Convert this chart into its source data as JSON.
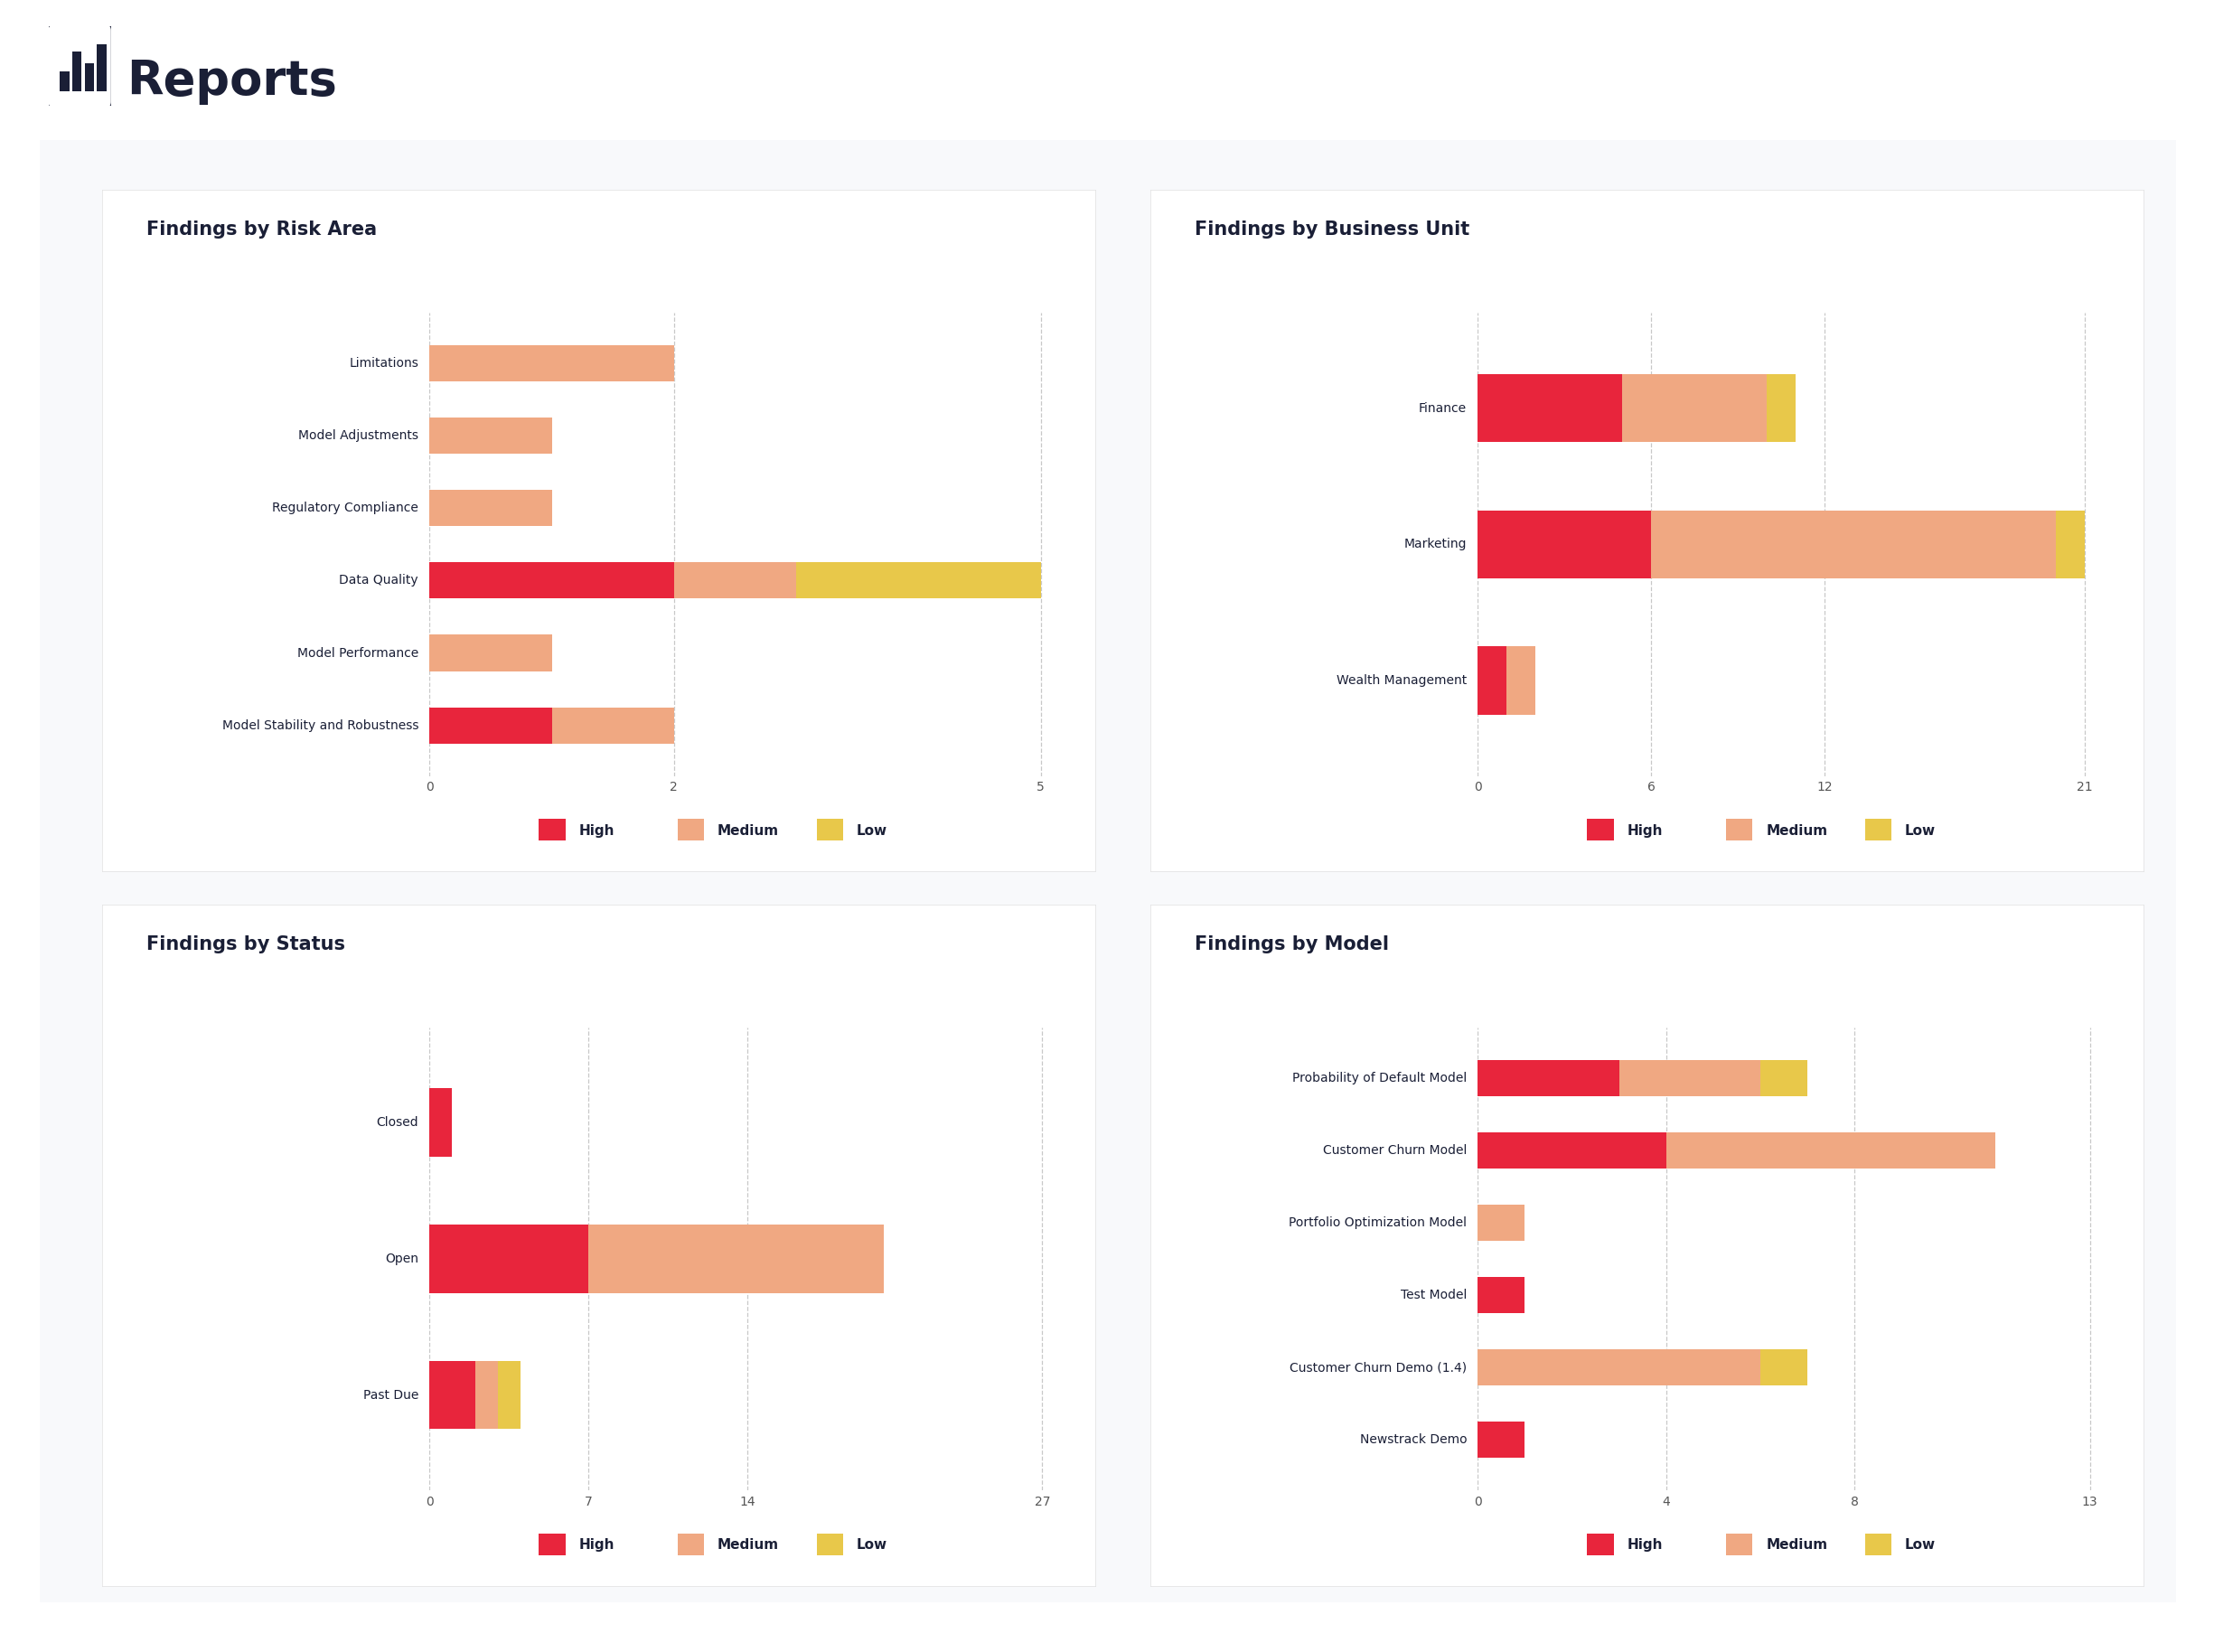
{
  "page_title": "Reports",
  "outer_bg": "#ffffff",
  "panel_bg": "#f8f9fb",
  "chart1": {
    "title": "Findings by Risk Area",
    "categories": [
      "Limitations",
      "Model Adjustments",
      "Regulatory Compliance",
      "Data Quality",
      "Model Performance",
      "Model Stability and Robustness"
    ],
    "high": [
      0,
      0,
      0,
      2,
      0,
      1
    ],
    "medium": [
      2,
      1,
      1,
      1,
      1,
      1
    ],
    "low": [
      0,
      0,
      0,
      2,
      0,
      0
    ],
    "xlim": [
      0,
      5.2
    ],
    "xticks": [
      0,
      2,
      5
    ]
  },
  "chart2": {
    "title": "Findings by Business Unit",
    "categories": [
      "Finance",
      "Marketing",
      "Wealth Management"
    ],
    "high": [
      5,
      6,
      1
    ],
    "medium": [
      5,
      14,
      1
    ],
    "low": [
      1,
      1,
      0
    ],
    "xlim": [
      0,
      22
    ],
    "xticks": [
      0,
      6,
      12,
      21
    ]
  },
  "chart3": {
    "title": "Findings by Status",
    "categories": [
      "Closed",
      "Open",
      "Past Due"
    ],
    "high": [
      1,
      7,
      2
    ],
    "medium": [
      0,
      13,
      1
    ],
    "low": [
      0,
      0,
      1
    ],
    "xlim": [
      0,
      28
    ],
    "xticks": [
      0,
      7,
      14,
      27
    ]
  },
  "chart4": {
    "title": "Findings by Model",
    "categories": [
      "Probability of Default Model",
      "Customer Churn Model",
      "Portfolio Optimization Model",
      "Test Model",
      "Customer Churn Demo (1.4)",
      "Newstrack Demo"
    ],
    "high": [
      3,
      4,
      0,
      1,
      0,
      1
    ],
    "medium": [
      3,
      7,
      1,
      0,
      6,
      0
    ],
    "low": [
      1,
      0,
      0,
      0,
      1,
      0
    ],
    "xlim": [
      0,
      13.5
    ],
    "xticks": [
      0,
      4,
      8,
      13
    ]
  },
  "color_high": "#e8253c",
  "color_medium": "#f0a882",
  "color_low": "#e8c84a",
  "bar_height": 0.5,
  "grid_color": "#c8c8c8",
  "text_color": "#1a1f36",
  "title_fontsize": 15,
  "label_fontsize": 10,
  "tick_fontsize": 10,
  "legend_fontsize": 11
}
